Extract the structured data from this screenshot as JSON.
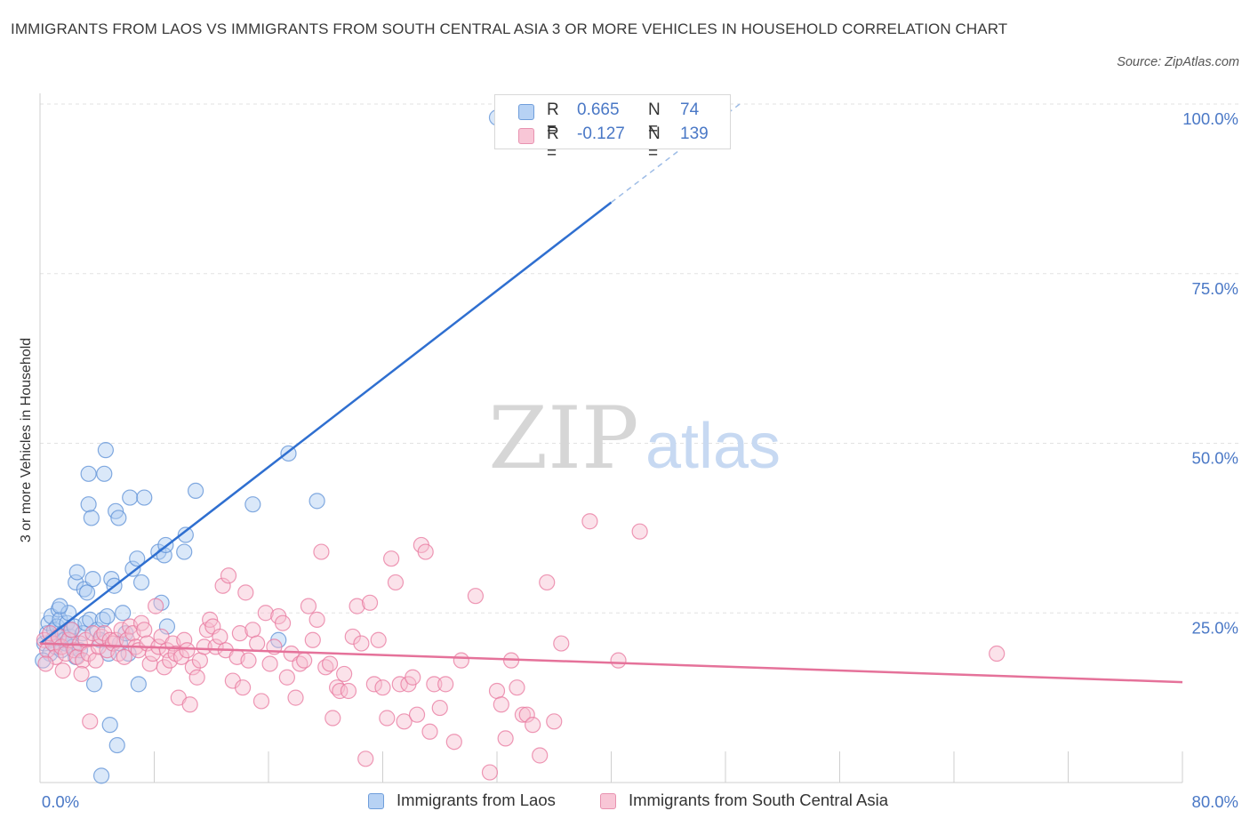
{
  "title": "IMMIGRANTS FROM LAOS VS IMMIGRANTS FROM SOUTH CENTRAL ASIA 3 OR MORE VEHICLES IN HOUSEHOLD CORRELATION CHART",
  "source": "Source: ZipAtlas.com",
  "watermark": {
    "zip": "ZIP",
    "atlas": "atlas"
  },
  "legend": {
    "r_label": "R =",
    "n_label": "N =",
    "rows": [
      {
        "r": "0.665",
        "n": "74",
        "color": "#8ab4ec"
      },
      {
        "r": "-0.127",
        "n": "139",
        "color": "#f2a8c0"
      }
    ]
  },
  "chart_data": {
    "type": "scatter",
    "title": "IMMIGRANTS FROM LAOS VS IMMIGRANTS FROM SOUTH CENTRAL ASIA 3 OR MORE VEHICLES IN HOUSEHOLD CORRELATION CHART",
    "xlabel": "",
    "ylabel": "3 or more Vehicles in Household",
    "xlim": [
      0,
      80
    ],
    "ylim": [
      0,
      100
    ],
    "x_tick_labels": [
      "0.0%",
      "80.0%"
    ],
    "y_tick_labels": [
      "25.0%",
      "50.0%",
      "75.0%",
      "100.0%"
    ],
    "y_ticks": [
      25,
      50,
      75,
      100
    ],
    "grid": true,
    "legend_position": "top-center",
    "series": [
      {
        "name": "Immigrants from Laos",
        "color": "#5b8fd6",
        "fill": "#aecbf2",
        "R": 0.665,
        "N": 74,
        "trend": {
          "x": [
            0,
            40
          ],
          "y": [
            20.5,
            85.5
          ]
        },
        "trend_dashed": {
          "x": [
            40,
            49
          ],
          "y": [
            85.5,
            100
          ]
        },
        "points": [
          [
            0.3,
            20.5
          ],
          [
            0.5,
            22.0
          ],
          [
            0.6,
            23.5
          ],
          [
            0.7,
            19.0
          ],
          [
            0.8,
            24.5
          ],
          [
            0.9,
            21.0
          ],
          [
            1.0,
            22.5
          ],
          [
            1.1,
            20.0
          ],
          [
            1.2,
            23.0
          ],
          [
            1.3,
            25.5
          ],
          [
            1.4,
            24.0
          ],
          [
            1.5,
            19.5
          ],
          [
            1.6,
            22.0
          ],
          [
            1.7,
            21.0
          ],
          [
            1.8,
            20.5
          ],
          [
            1.9,
            23.5
          ],
          [
            2.0,
            25.0
          ],
          [
            2.1,
            21.5
          ],
          [
            2.2,
            22.5
          ],
          [
            2.3,
            20.0
          ],
          [
            2.4,
            23.0
          ],
          [
            2.5,
            29.5
          ],
          [
            2.5,
            18.5
          ],
          [
            2.6,
            31.0
          ],
          [
            2.8,
            19.5
          ],
          [
            3.0,
            22.0
          ],
          [
            3.1,
            28.5
          ],
          [
            3.2,
            23.5
          ],
          [
            3.3,
            28.0
          ],
          [
            3.4,
            41.0
          ],
          [
            3.4,
            45.5
          ],
          [
            3.5,
            24.0
          ],
          [
            3.6,
            39.0
          ],
          [
            3.7,
            30.0
          ],
          [
            3.8,
            14.5
          ],
          [
            4.0,
            22.5
          ],
          [
            4.2,
            21.0
          ],
          [
            4.3,
            1.0
          ],
          [
            4.4,
            24.0
          ],
          [
            4.5,
            45.5
          ],
          [
            4.6,
            49.0
          ],
          [
            4.7,
            24.5
          ],
          [
            4.8,
            19.0
          ],
          [
            4.9,
            8.5
          ],
          [
            5.0,
            30.0
          ],
          [
            5.2,
            29.0
          ],
          [
            5.3,
            40.0
          ],
          [
            5.4,
            5.5
          ],
          [
            5.5,
            39.0
          ],
          [
            5.6,
            20.5
          ],
          [
            5.8,
            25.0
          ],
          [
            6.0,
            22.0
          ],
          [
            6.2,
            19.0
          ],
          [
            6.3,
            42.0
          ],
          [
            6.5,
            31.5
          ],
          [
            6.8,
            33.0
          ],
          [
            6.9,
            14.5
          ],
          [
            7.1,
            29.5
          ],
          [
            7.3,
            42.0
          ],
          [
            8.3,
            34.0
          ],
          [
            8.5,
            26.5
          ],
          [
            8.7,
            33.5
          ],
          [
            8.8,
            35.0
          ],
          [
            8.9,
            23.0
          ],
          [
            10.1,
            34.0
          ],
          [
            10.2,
            36.5
          ],
          [
            10.9,
            43.0
          ],
          [
            14.9,
            41.0
          ],
          [
            16.7,
            21.0
          ],
          [
            17.4,
            48.5
          ],
          [
            19.4,
            41.5
          ],
          [
            32.0,
            98.0
          ],
          [
            0.2,
            18.0
          ],
          [
            1.4,
            26.0
          ]
        ]
      },
      {
        "name": "Immigrants from South Central Asia",
        "color": "#e8779e",
        "fill": "#f6bfd1",
        "R": -0.127,
        "N": 139,
        "trend": {
          "x": [
            0,
            80
          ],
          "y": [
            20.5,
            14.8
          ]
        },
        "points": [
          [
            0.3,
            21.0
          ],
          [
            0.5,
            19.5
          ],
          [
            0.7,
            22.0
          ],
          [
            0.9,
            20.5
          ],
          [
            1.1,
            18.5
          ],
          [
            1.3,
            21.5
          ],
          [
            1.5,
            20.0
          ],
          [
            1.6,
            16.5
          ],
          [
            1.8,
            19.0
          ],
          [
            2.0,
            21.0
          ],
          [
            2.2,
            22.5
          ],
          [
            2.4,
            19.5
          ],
          [
            2.6,
            18.5
          ],
          [
            2.8,
            20.5
          ],
          [
            3.0,
            18.0
          ],
          [
            3.2,
            21.0
          ],
          [
            3.4,
            19.0
          ],
          [
            3.5,
            9.0
          ],
          [
            3.7,
            22.0
          ],
          [
            3.9,
            18.0
          ],
          [
            4.1,
            20.0
          ],
          [
            4.3,
            21.5
          ],
          [
            4.5,
            22.0
          ],
          [
            4.7,
            19.5
          ],
          [
            4.9,
            21.0
          ],
          [
            5.1,
            20.5
          ],
          [
            5.3,
            21.0
          ],
          [
            5.5,
            19.0
          ],
          [
            5.7,
            22.5
          ],
          [
            5.9,
            18.5
          ],
          [
            6.1,
            21.0
          ],
          [
            6.3,
            23.0
          ],
          [
            6.5,
            22.0
          ],
          [
            6.7,
            20.0
          ],
          [
            6.9,
            19.5
          ],
          [
            7.1,
            23.5
          ],
          [
            7.3,
            22.5
          ],
          [
            7.5,
            20.5
          ],
          [
            7.7,
            17.5
          ],
          [
            7.9,
            19.0
          ],
          [
            8.1,
            26.0
          ],
          [
            8.3,
            20.0
          ],
          [
            8.5,
            21.5
          ],
          [
            8.7,
            17.0
          ],
          [
            8.9,
            19.5
          ],
          [
            9.1,
            18.0
          ],
          [
            9.3,
            20.5
          ],
          [
            9.5,
            19.0
          ],
          [
            9.7,
            12.5
          ],
          [
            9.9,
            18.5
          ],
          [
            10.1,
            21.0
          ],
          [
            10.3,
            19.5
          ],
          [
            10.5,
            11.5
          ],
          [
            10.7,
            17.0
          ],
          [
            11.0,
            15.5
          ],
          [
            11.2,
            18.0
          ],
          [
            11.5,
            20.0
          ],
          [
            11.7,
            22.5
          ],
          [
            11.9,
            24.0
          ],
          [
            12.1,
            23.0
          ],
          [
            12.3,
            20.0
          ],
          [
            12.6,
            21.5
          ],
          [
            12.8,
            29.0
          ],
          [
            13.0,
            19.5
          ],
          [
            13.2,
            30.5
          ],
          [
            13.5,
            15.0
          ],
          [
            13.8,
            18.5
          ],
          [
            14.0,
            22.0
          ],
          [
            14.2,
            14.0
          ],
          [
            14.4,
            28.0
          ],
          [
            14.6,
            18.0
          ],
          [
            14.9,
            22.5
          ],
          [
            15.2,
            20.5
          ],
          [
            15.5,
            12.0
          ],
          [
            15.8,
            25.0
          ],
          [
            16.1,
            17.5
          ],
          [
            16.4,
            20.0
          ],
          [
            16.7,
            24.5
          ],
          [
            17.0,
            23.5
          ],
          [
            17.3,
            15.5
          ],
          [
            17.6,
            19.0
          ],
          [
            17.9,
            12.5
          ],
          [
            18.2,
            17.5
          ],
          [
            18.5,
            18.0
          ],
          [
            18.8,
            26.0
          ],
          [
            19.1,
            21.0
          ],
          [
            19.4,
            24.0
          ],
          [
            19.7,
            34.0
          ],
          [
            20.0,
            17.0
          ],
          [
            20.3,
            17.5
          ],
          [
            20.5,
            9.5
          ],
          [
            20.8,
            14.0
          ],
          [
            21.0,
            13.5
          ],
          [
            21.3,
            16.0
          ],
          [
            21.6,
            13.5
          ],
          [
            21.9,
            21.5
          ],
          [
            22.2,
            26.0
          ],
          [
            22.5,
            20.5
          ],
          [
            22.8,
            3.5
          ],
          [
            23.1,
            26.5
          ],
          [
            23.4,
            14.5
          ],
          [
            23.7,
            21.0
          ],
          [
            24.0,
            14.0
          ],
          [
            24.3,
            9.5
          ],
          [
            24.6,
            33.0
          ],
          [
            24.9,
            29.5
          ],
          [
            25.2,
            14.5
          ],
          [
            25.5,
            9.0
          ],
          [
            25.8,
            14.5
          ],
          [
            26.1,
            15.5
          ],
          [
            26.4,
            10.0
          ],
          [
            26.7,
            35.0
          ],
          [
            27.0,
            34.0
          ],
          [
            27.3,
            7.5
          ],
          [
            27.6,
            14.5
          ],
          [
            28.0,
            11.0
          ],
          [
            28.4,
            14.5
          ],
          [
            29.0,
            6.0
          ],
          [
            29.5,
            18.0
          ],
          [
            30.5,
            27.5
          ],
          [
            31.5,
            1.5
          ],
          [
            32.0,
            13.5
          ],
          [
            32.3,
            11.5
          ],
          [
            32.6,
            6.5
          ],
          [
            33.0,
            18.0
          ],
          [
            33.4,
            14.0
          ],
          [
            33.8,
            10.0
          ],
          [
            34.1,
            10.0
          ],
          [
            34.5,
            8.5
          ],
          [
            35.0,
            4.0
          ],
          [
            35.5,
            29.5
          ],
          [
            36.0,
            9.0
          ],
          [
            36.5,
            20.5
          ],
          [
            38.5,
            38.5
          ],
          [
            40.5,
            18.0
          ],
          [
            42.0,
            37.0
          ],
          [
            67.0,
            19.0
          ],
          [
            0.4,
            17.5
          ],
          [
            2.9,
            16.0
          ]
        ]
      }
    ]
  }
}
